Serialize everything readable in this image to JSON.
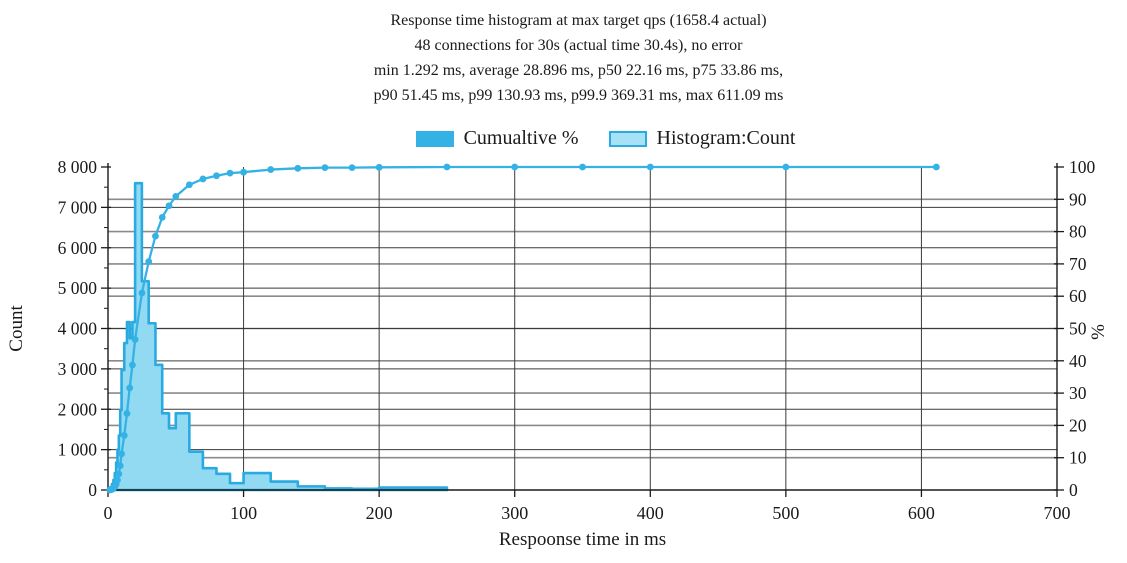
{
  "title": {
    "lines": [
      "Response time histogram at max target qps (1658.4 actual)",
      "48 connections for 30s (actual time 30.4s), no error",
      "min 1.292 ms, average 28.896 ms, p50 22.16 ms, p75 33.86 ms,",
      "p90 51.45 ms, p99 130.93 ms, p99.9 369.31 ms, max 611.09 ms"
    ]
  },
  "legend": {
    "items": [
      {
        "label": "Cumualtive %",
        "swatch_color": "#35b2e5",
        "type": "line"
      },
      {
        "label": "Histogram:Count",
        "swatch_fill": "#a6e1f6",
        "swatch_stroke": "#29abe2",
        "type": "bar"
      }
    ]
  },
  "chart_data": {
    "type": "bar",
    "subtype": "histogram-with-cumulative-percent-line",
    "xlabel": "Respoonse time in ms",
    "ylabel_left": "Count",
    "ylabel_right": "%",
    "xlim": [
      0,
      700
    ],
    "ylim_left": [
      0,
      8000
    ],
    "ylim_right": [
      0,
      100
    ],
    "grid": true,
    "legend_position": "top-center",
    "x_ticks": [
      0,
      100,
      200,
      300,
      400,
      500,
      600,
      700
    ],
    "y_left_ticks": [
      {
        "value": 0,
        "label": "0"
      },
      {
        "value": 1000,
        "label": "1 000"
      },
      {
        "value": 2000,
        "label": "2 000"
      },
      {
        "value": 3000,
        "label": "3 000"
      },
      {
        "value": 4000,
        "label": "4 000"
      },
      {
        "value": 5000,
        "label": "5 000"
      },
      {
        "value": 6000,
        "label": "6 000"
      },
      {
        "value": 7000,
        "label": "7 000"
      },
      {
        "value": 8000,
        "label": "8 000"
      }
    ],
    "y_left_minor_step": 500,
    "y_right_ticks": [
      0,
      10,
      20,
      30,
      40,
      50,
      60,
      70,
      80,
      90,
      100
    ],
    "series": [
      {
        "name": "Histogram:Count",
        "type": "bar",
        "axis": "left",
        "fill": "#92d9f2",
        "stroke": "#29abe2",
        "buckets_ms_start_end_count": [
          [
            1,
            2,
            30
          ],
          [
            2,
            3,
            80
          ],
          [
            3,
            4,
            150
          ],
          [
            4,
            5,
            250
          ],
          [
            5,
            6,
            420
          ],
          [
            6,
            7,
            680
          ],
          [
            7,
            8,
            1000
          ],
          [
            8,
            9,
            1350
          ],
          [
            9,
            10,
            1980
          ],
          [
            10,
            12,
            2970
          ],
          [
            12,
            14,
            3640
          ],
          [
            14,
            16,
            4160
          ],
          [
            16,
            18,
            3760
          ],
          [
            18,
            20,
            4160
          ],
          [
            20,
            25,
            7600
          ],
          [
            25,
            30,
            5170
          ],
          [
            30,
            35,
            4130
          ],
          [
            35,
            40,
            3100
          ],
          [
            40,
            45,
            1900
          ],
          [
            45,
            50,
            1530
          ],
          [
            50,
            60,
            1900
          ],
          [
            60,
            70,
            950
          ],
          [
            70,
            80,
            540
          ],
          [
            80,
            90,
            400
          ],
          [
            90,
            100,
            170
          ],
          [
            100,
            120,
            420
          ],
          [
            120,
            140,
            210
          ],
          [
            140,
            160,
            90
          ],
          [
            160,
            180,
            40
          ],
          [
            180,
            200,
            30
          ],
          [
            200,
            250,
            60
          ]
        ]
      },
      {
        "name": "Cumualtive %",
        "type": "line",
        "axis": "right",
        "color": "#35b2e5",
        "marker": "circle",
        "points_ms_pct": [
          [
            1.3,
            0
          ],
          [
            2,
            0.1
          ],
          [
            3,
            0.2
          ],
          [
            4,
            0.5
          ],
          [
            5,
            1.0
          ],
          [
            6,
            1.8
          ],
          [
            7,
            3.1
          ],
          [
            8,
            5.0
          ],
          [
            9,
            7.5
          ],
          [
            10,
            11.2
          ],
          [
            12,
            16.9
          ],
          [
            14,
            23.7
          ],
          [
            16,
            31.6
          ],
          [
            18,
            38.7
          ],
          [
            20,
            46.6
          ],
          [
            25,
            61.0
          ],
          [
            30,
            70.7
          ],
          [
            35,
            78.6
          ],
          [
            40,
            84.4
          ],
          [
            45,
            88.0
          ],
          [
            50,
            90.9
          ],
          [
            60,
            94.5
          ],
          [
            70,
            96.3
          ],
          [
            80,
            97.3
          ],
          [
            90,
            98.1
          ],
          [
            100,
            98.4
          ],
          [
            120,
            99.2
          ],
          [
            140,
            99.6
          ],
          [
            160,
            99.8
          ],
          [
            180,
            99.8
          ],
          [
            200,
            99.9
          ],
          [
            250,
            100
          ],
          [
            300,
            100
          ],
          [
            350,
            100
          ],
          [
            400,
            100
          ],
          [
            500,
            100
          ],
          [
            611,
            100
          ]
        ]
      }
    ],
    "colors": {
      "grid_count_lines": "#3a3a3a",
      "grid_percent_lines": "#8a8a8a",
      "axis": "#1a1a1a",
      "text": "#1a1a1a"
    }
  }
}
